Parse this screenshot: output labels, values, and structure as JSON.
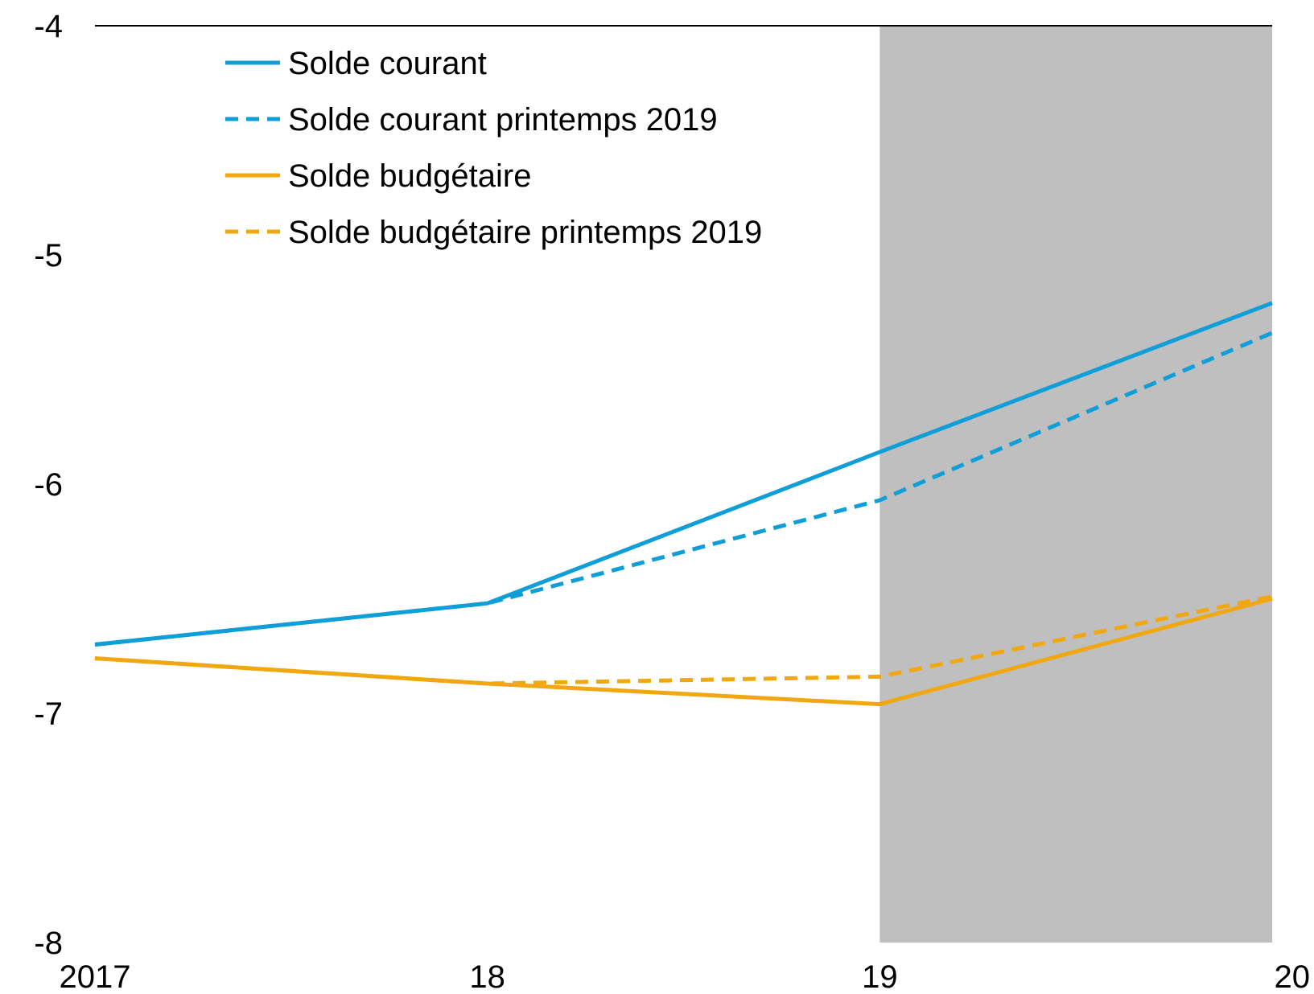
{
  "chart_data": {
    "type": "line",
    "categories": [
      "2017",
      "18",
      "19",
      "20"
    ],
    "x_tick_labels": [
      "2017",
      "18",
      "19",
      "20"
    ],
    "ylim": [
      -8,
      -4
    ],
    "y_ticks": [
      "-8",
      "-7",
      "-6",
      "-5",
      "-4"
    ],
    "y_tick_values": [
      -8,
      -7,
      -6,
      -5,
      -4
    ],
    "shaded_region": {
      "from": "19",
      "to": "20",
      "color": "#bfbfbf"
    },
    "legend_position": "top-left",
    "series": [
      {
        "name": "Solde courant",
        "values": [
          -6.7,
          -6.52,
          -5.86,
          -5.21
        ],
        "color": "#0f9ed8",
        "style": "solid"
      },
      {
        "name": "Solde courant printemps 2019",
        "values": [
          -6.7,
          -6.52,
          -6.07,
          -5.34
        ],
        "color": "#0f9ed8",
        "style": "dashed"
      },
      {
        "name": "Solde budgétaire",
        "values": [
          -6.76,
          -6.87,
          -6.96,
          -6.5
        ],
        "color": "#f0a710",
        "style": "solid"
      },
      {
        "name": "Solde budgétaire printemps 2019",
        "values": [
          -6.76,
          -6.87,
          -6.84,
          -6.49
        ],
        "color": "#f0a710",
        "style": "dashed"
      }
    ]
  }
}
